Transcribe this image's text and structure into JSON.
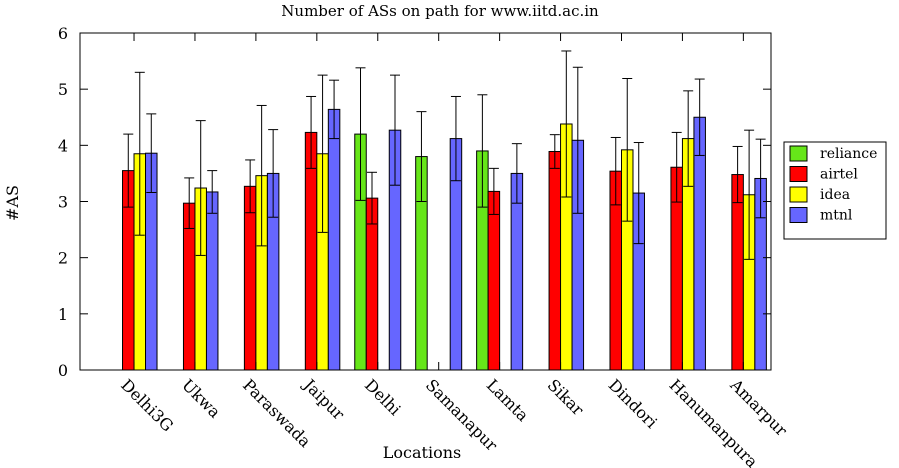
{
  "chart_data": {
    "type": "bar",
    "title": "Number of ASs on path for www.iitd.ac.in",
    "xlabel": "Locations",
    "ylabel": "#AS",
    "ylim": [
      0,
      6
    ],
    "yticks": [
      0,
      1,
      2,
      3,
      4,
      5,
      6
    ],
    "grid": false,
    "legend_position": "right",
    "error_bars": true,
    "categories": [
      "Delhi3G",
      "Ukwa",
      "Paraswada",
      "Jaipur",
      "Delhi",
      "Samanapur",
      "Lamta",
      "Sikar",
      "Dindori",
      "Hanumanpura",
      "Amarpur"
    ],
    "series": [
      {
        "name": "reliance",
        "color": "#66e619",
        "values": [
          null,
          null,
          null,
          null,
          4.2,
          3.8,
          3.9,
          null,
          null,
          null,
          null
        ],
        "err": [
          null,
          null,
          null,
          null,
          1.18,
          0.8,
          1.0,
          null,
          null,
          null,
          null
        ]
      },
      {
        "name": "airtel",
        "color": "#ff0000",
        "values": [
          3.55,
          2.97,
          3.27,
          4.23,
          3.06,
          null,
          3.18,
          3.89,
          3.54,
          3.61,
          3.48
        ],
        "err": [
          0.65,
          0.45,
          0.47,
          0.64,
          0.46,
          null,
          0.41,
          0.3,
          0.6,
          0.62,
          0.5
        ]
      },
      {
        "name": "idea",
        "color": "#ffff00",
        "values": [
          3.85,
          3.24,
          3.46,
          3.85,
          null,
          null,
          null,
          4.38,
          3.92,
          4.12,
          3.12
        ],
        "err": [
          1.45,
          1.2,
          1.25,
          1.4,
          null,
          null,
          null,
          1.3,
          1.27,
          0.85,
          1.15
        ]
      },
      {
        "name": "mtnl",
        "color": "#6666ff",
        "values": [
          3.86,
          3.17,
          3.5,
          4.64,
          4.27,
          4.12,
          3.5,
          4.09,
          3.15,
          4.5,
          3.41
        ],
        "err": [
          0.7,
          0.38,
          0.78,
          0.52,
          0.98,
          0.75,
          0.53,
          1.3,
          0.9,
          0.68,
          0.7
        ]
      }
    ]
  }
}
